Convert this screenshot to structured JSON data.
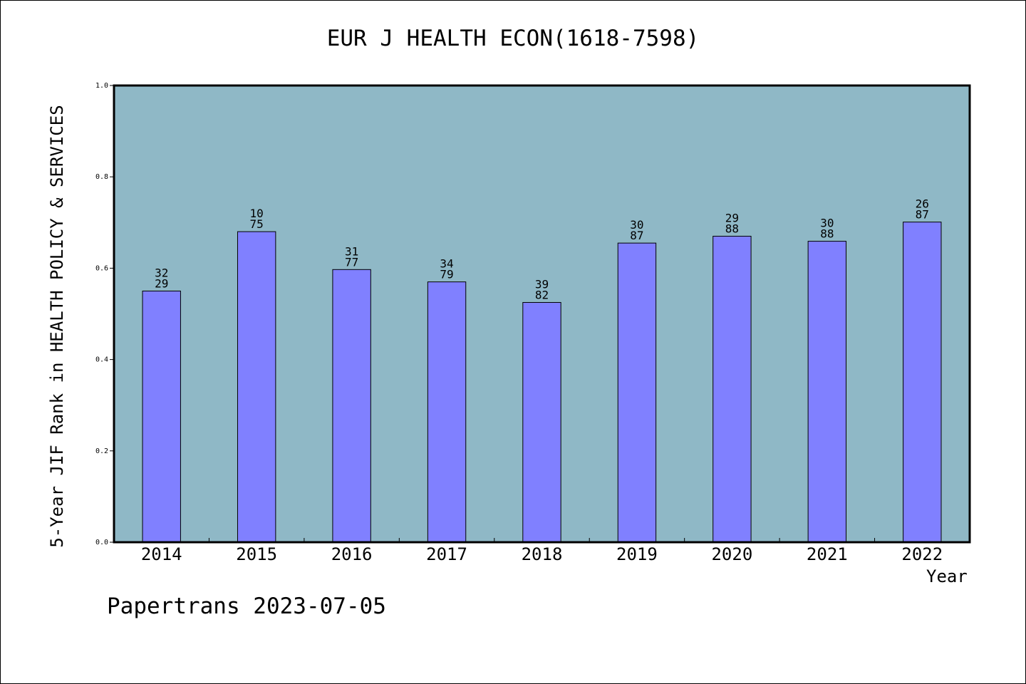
{
  "chart_data": {
    "type": "bar",
    "title": "EUR J HEALTH ECON(1618-7598)",
    "xlabel": "Year",
    "ylabel": "5-Year JIF Rank in HEALTH POLICY & SERVICES",
    "categories": [
      "2014",
      "2015",
      "2016",
      "2017",
      "2018",
      "2019",
      "2020",
      "2021",
      "2022"
    ],
    "values": [
      0.55,
      0.68,
      0.597,
      0.57,
      0.525,
      0.655,
      0.67,
      0.659,
      0.701
    ],
    "bar_labels": [
      [
        "32",
        "29"
      ],
      [
        "10",
        "75"
      ],
      [
        "31",
        "77"
      ],
      [
        "34",
        "79"
      ],
      [
        "39",
        "82"
      ],
      [
        "30",
        "87"
      ],
      [
        "29",
        "88"
      ],
      [
        "30",
        "88"
      ],
      [
        "26",
        "87"
      ]
    ],
    "ylim": [
      0,
      1.0
    ],
    "yticks": [
      "0.0",
      "0.2",
      "0.4",
      "0.6",
      "0.8",
      "1.0"
    ],
    "grid": false,
    "colors": {
      "plot_background": "#8fb8c6",
      "bar_fill": "#8080ff",
      "bar_stroke": "#000000"
    }
  },
  "footer": {
    "note": "Papertrans 2023-07-05"
  }
}
